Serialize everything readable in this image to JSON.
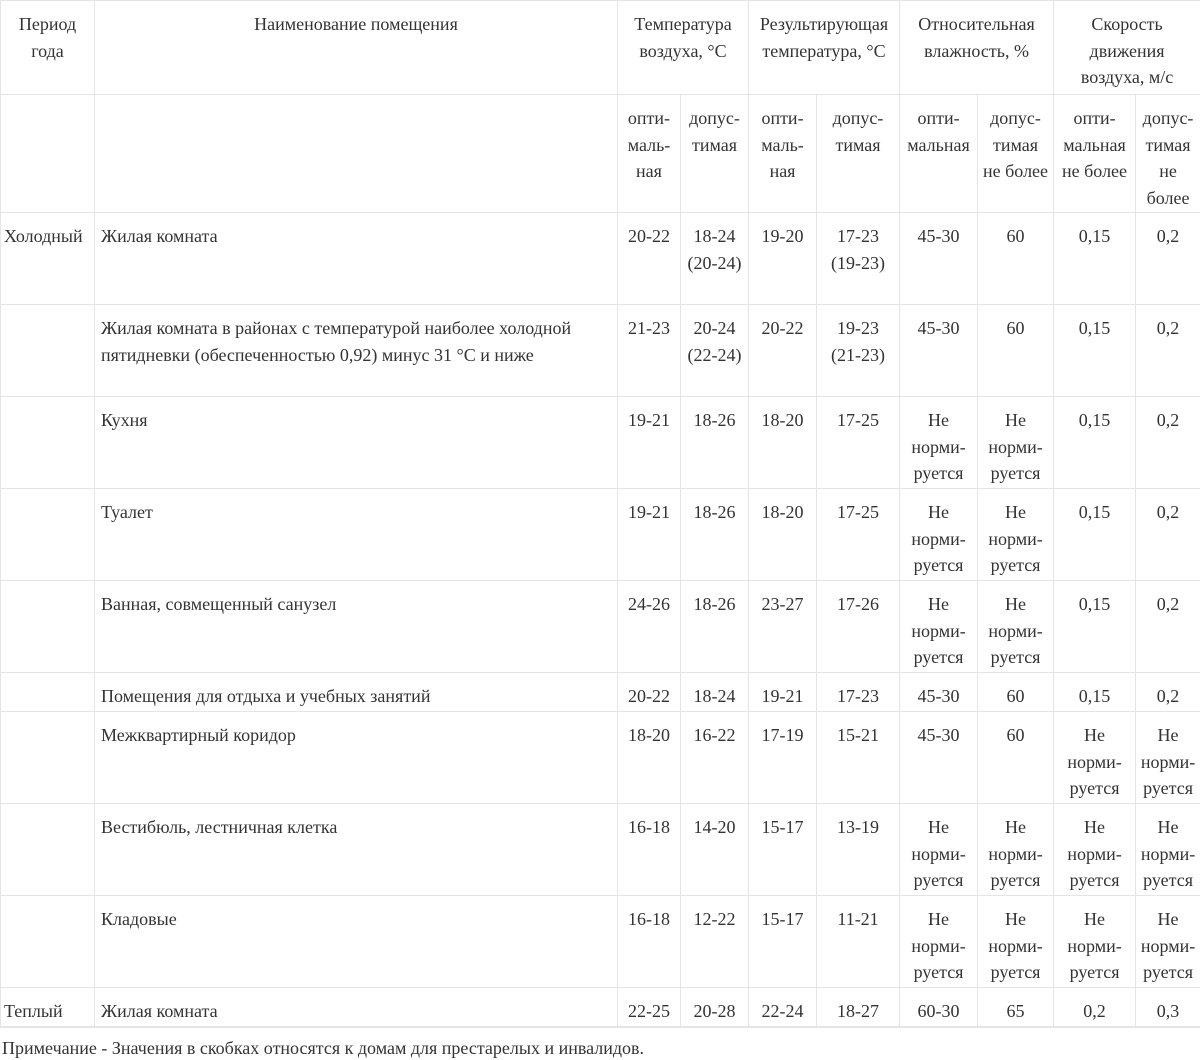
{
  "headers": {
    "period": "Период года",
    "room": "Наименование помещения",
    "air_temp": "Температура воздуха, °С",
    "result_temp": "Результирующая температура, °С",
    "humidity": "Относительная влажность, %",
    "air_speed": "Скорость движения воздуха, м/с"
  },
  "subheaders": [
    "опти-маль-ная",
    "допус-тимая",
    "опти-маль-ная",
    "допус-тимая",
    "опти-мальная",
    "допус-тимая не более",
    "опти-мальная не более",
    "допус-тимая не более"
  ],
  "rows": [
    {
      "period": "Холодный",
      "room": "Жилая комната",
      "values": [
        "20-22",
        "18-24 (20-24)",
        "19-20",
        "17-23 (19-23)",
        "45-30",
        "60",
        "0,15",
        "0,2"
      ]
    },
    {
      "period": "",
      "room": "Жилая комната в районах с температурой наиболее холодной пятидневки (обеспеченностью 0,92) минус 31 °С и ниже",
      "values": [
        "21-23",
        "20-24 (22-24)",
        "20-22",
        "19-23 (21-23)",
        "45-30",
        "60",
        "0,15",
        "0,2"
      ]
    },
    {
      "period": "",
      "room": "Кухня",
      "values": [
        "19-21",
        "18-26",
        "18-20",
        "17-25",
        "Не норми-руется",
        "Не норми-руется",
        "0,15",
        "0,2"
      ]
    },
    {
      "period": "",
      "room": "Туалет",
      "values": [
        "19-21",
        "18-26",
        "18-20",
        "17-25",
        "Не норми-руется",
        "Не норми-руется",
        "0,15",
        "0,2"
      ]
    },
    {
      "period": "",
      "room": "Ванная, совмещенный санузел",
      "values": [
        "24-26",
        "18-26",
        "23-27",
        "17-26",
        "Не норми-руется",
        "Не норми-руется",
        "0,15",
        "0,2"
      ]
    },
    {
      "period": "",
      "room": "Помещения для отдыха и учебных занятий",
      "values": [
        "20-22",
        "18-24",
        "19-21",
        "17-23",
        "45-30",
        "60",
        "0,15",
        "0,2"
      ]
    },
    {
      "period": "",
      "room": "Межквартирный коридор",
      "values": [
        "18-20",
        "16-22",
        "17-19",
        "15-21",
        "45-30",
        "60",
        "Не норми-руется",
        "Не норми-руется"
      ]
    },
    {
      "period": "",
      "room": "Вестибюль, лестничная клетка",
      "values": [
        "16-18",
        "14-20",
        "15-17",
        "13-19",
        "Не норми-руется",
        "Не норми-руется",
        "Не норми-руется",
        "Не норми-руется"
      ]
    },
    {
      "period": "",
      "room": "Кладовые",
      "values": [
        "16-18",
        "12-22",
        "15-17",
        "11-21",
        "Не норми-руется",
        "Не норми-руется",
        "Не норми-руется",
        "Не норми-руется"
      ]
    },
    {
      "period": "Теплый",
      "room": "Жилая комната",
      "values": [
        "22-25",
        "20-28",
        "22-24",
        "18-27",
        "60-30",
        "65",
        "0,2",
        "0,3"
      ]
    }
  ],
  "note": "Примечание - Значения в скобках относятся к домам для престарелых и инвалидов."
}
